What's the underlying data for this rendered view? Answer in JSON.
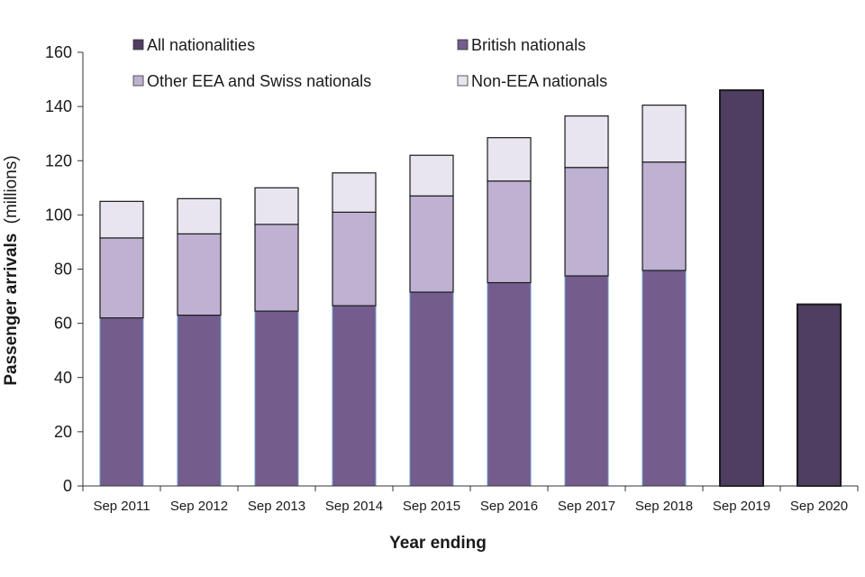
{
  "chart_data": {
    "type": "bar",
    "title": "",
    "xlabel": "Year ending",
    "ylabel_bold": "Passenger arrivals",
    "ylabel_unit": "(millions)",
    "ylim": [
      0,
      160
    ],
    "yticks": [
      0,
      20,
      40,
      60,
      80,
      100,
      120,
      140,
      160
    ],
    "categories": [
      "Sep 2011",
      "Sep 2012",
      "Sep 2013",
      "Sep 2014",
      "Sep 2015",
      "Sep 2016",
      "Sep 2017",
      "Sep 2018",
      "Sep 2019",
      "Sep 2020"
    ],
    "series": [
      {
        "name": "All nationalities",
        "color": "#4f3d62",
        "values": [
          null,
          null,
          null,
          null,
          null,
          null,
          null,
          null,
          146,
          67
        ]
      },
      {
        "name": "British nationals",
        "color": "#745c8c",
        "values": [
          62,
          63,
          64.5,
          66.5,
          71.5,
          75,
          77.5,
          79.5,
          null,
          null
        ]
      },
      {
        "name": "Other EEA and Swiss nationals",
        "color": "#bfb1d2",
        "values": [
          29.5,
          30,
          32,
          34.5,
          35.5,
          37.5,
          40,
          40,
          null,
          null
        ]
      },
      {
        "name": "Non-EEA nationals",
        "color": "#e9e5f0",
        "values": [
          13.5,
          13,
          13.5,
          14.5,
          15,
          16,
          19,
          21,
          null,
          null
        ]
      }
    ],
    "legend": {
      "position": "top",
      "items": [
        {
          "label": "All nationalities",
          "color": "#4f3d62"
        },
        {
          "label": "British nationals",
          "color": "#745c8c"
        },
        {
          "label": "Other EEA and Swiss nationals",
          "color": "#bfb1d2"
        },
        {
          "label": "Non-EEA nationals",
          "color": "#e9e5f0"
        }
      ]
    }
  }
}
